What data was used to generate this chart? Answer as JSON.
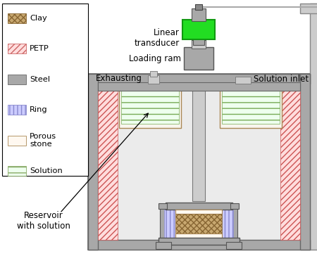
{
  "bg_color": "#ffffff",
  "steel_color": "#a8a8a8",
  "steel_light": "#cccccc",
  "steel_dark": "#888888",
  "petp_color": "#ffdddd",
  "clay_color": "#c8a870",
  "ring_color": "#ccccff",
  "solution_color": "#eeffee",
  "porous_color": "#fff8f0",
  "green_bright": "#22dd22",
  "labels": {
    "linear_transducer": "Linear\ntransducer",
    "loading_ram": "Loading ram",
    "exhausting": "Exhausting",
    "solution_inlet": "Solution inlet",
    "reservoir": "Reservoir\nwith solution"
  },
  "legend_items": [
    {
      "label": "Clay",
      "color": "#c8a870",
      "hatch": "xxxx",
      "ec": "#886633"
    },
    {
      "label": "PETP",
      "color": "#ffdddd",
      "hatch": "////",
      "ec": "#cc6666"
    },
    {
      "label": "Steel",
      "color": "#a8a8a8",
      "hatch": "",
      "ec": "#666666"
    },
    {
      "label": "Ring",
      "color": "#ccccff",
      "hatch": "|||",
      "ec": "#8888cc"
    },
    {
      "label": "Porous\nstone",
      "color": "#fff8f0",
      "hatch": "",
      "ec": "#aa8855"
    },
    {
      "label": "Solution",
      "color": "#eeffee",
      "hatch": "--",
      "ec": "#88aa66"
    }
  ]
}
